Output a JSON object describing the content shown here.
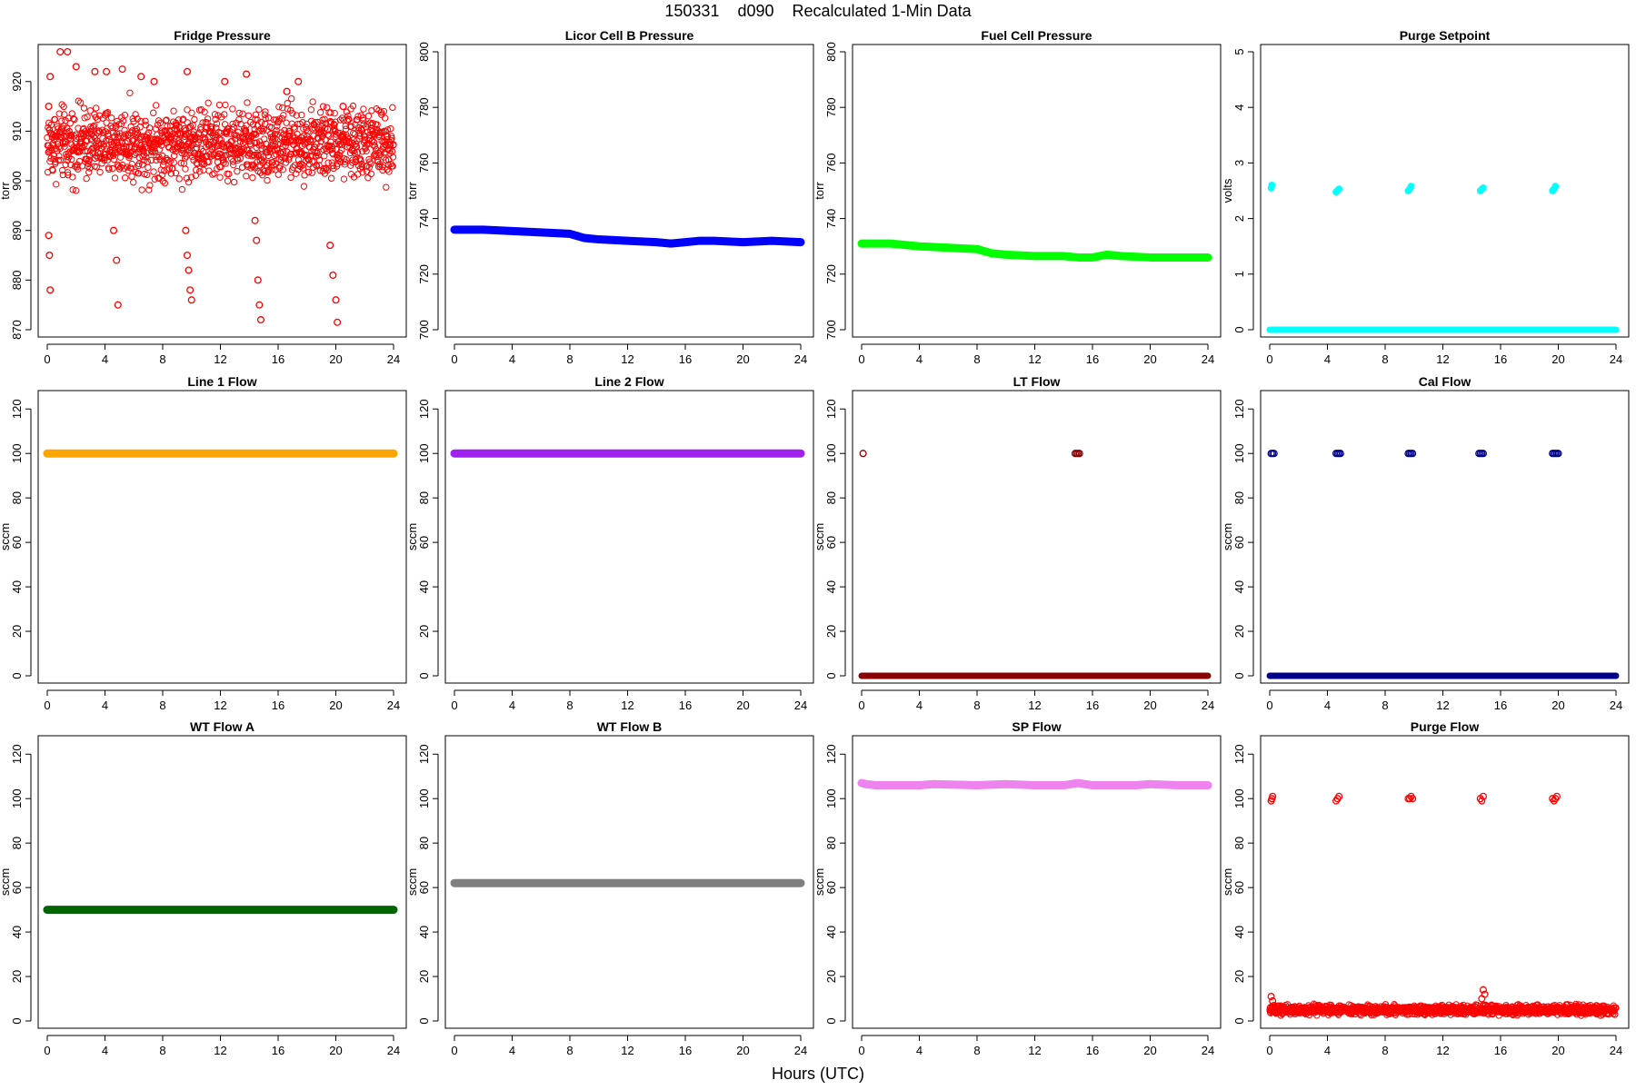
{
  "figure": {
    "title": "150331    d090    Recalculated 1-Min Data",
    "xlabel": "Hours (UTC)"
  },
  "chart_data": [
    {
      "type": "scatter",
      "title": "Fridge Pressure",
      "ylabel": "torr",
      "color": "#ff0000",
      "marker": "open-circle",
      "xlim": [
        0,
        24
      ],
      "xticks": [
        0,
        4,
        8,
        12,
        16,
        20,
        24
      ],
      "ylim": [
        870,
        926
      ],
      "yticks": [
        870,
        880,
        890,
        900,
        910,
        920
      ],
      "noise_band": {
        "x": [
          0,
          24
        ],
        "y_range": [
          897,
          918
        ]
      },
      "series": [
        {
          "x": [
            0.1,
            0.2,
            0.9,
            1.4,
            2.0,
            3.3,
            4.1,
            5.2,
            6.5,
            7.4,
            9.7,
            12.3,
            13.8,
            16.6,
            17.4,
            20.5
          ],
          "y": [
            915,
            921,
            926,
            926,
            923,
            922,
            922,
            922.5,
            921,
            920,
            922,
            920,
            921.5,
            918,
            920,
            915
          ]
        },
        {
          "x": [
            0.1,
            0.15,
            0.2,
            4.6,
            4.8,
            4.9,
            9.6,
            9.7,
            9.8,
            9.9,
            10.0,
            14.4,
            14.5,
            14.6,
            14.7,
            14.8,
            19.6,
            19.8,
            20.0,
            20.1
          ],
          "y": [
            889,
            885,
            878,
            890,
            884,
            875,
            890,
            885,
            882,
            878,
            876,
            892,
            888,
            880,
            875,
            872,
            887,
            881,
            876,
            871.5
          ]
        }
      ]
    },
    {
      "type": "line",
      "title": "Licor Cell B Pressure",
      "ylabel": "torr",
      "color": "#0000ff",
      "xlim": [
        0,
        24
      ],
      "xticks": [
        0,
        4,
        8,
        12,
        16,
        20,
        24
      ],
      "ylim": [
        700,
        800
      ],
      "yticks": [
        700,
        720,
        740,
        760,
        780,
        800
      ],
      "series": [
        {
          "x": [
            0,
            2,
            4,
            6,
            8,
            9,
            10,
            12,
            14,
            15,
            16,
            17,
            18,
            20,
            22,
            24
          ],
          "y": [
            736,
            736,
            735.5,
            735,
            734.5,
            733,
            732.5,
            732,
            731.5,
            731,
            731.5,
            732,
            732,
            731.5,
            732,
            731.5
          ]
        }
      ]
    },
    {
      "type": "line",
      "title": "Fuel Cell Pressure",
      "ylabel": "torr",
      "color": "#00ff00",
      "xlim": [
        0,
        24
      ],
      "xticks": [
        0,
        4,
        8,
        12,
        16,
        20,
        24
      ],
      "ylim": [
        700,
        800
      ],
      "yticks": [
        700,
        720,
        740,
        760,
        780,
        800
      ],
      "series": [
        {
          "x": [
            0,
            2,
            4,
            6,
            8,
            9,
            10,
            12,
            14,
            15,
            16,
            17,
            18,
            20,
            22,
            24
          ],
          "y": [
            731,
            731,
            730,
            729.5,
            729,
            727.5,
            727,
            726.5,
            726.5,
            726,
            726,
            727,
            726.5,
            726,
            726,
            726
          ]
        }
      ]
    },
    {
      "type": "scatter",
      "title": "Purge Setpoint",
      "ylabel": "volts",
      "color": "#00ffff",
      "marker": "filled-circle",
      "xlim": [
        0,
        24
      ],
      "xticks": [
        0,
        4,
        8,
        12,
        16,
        20,
        24
      ],
      "ylim": [
        0,
        5
      ],
      "yticks": [
        0,
        1,
        2,
        3,
        4,
        5
      ],
      "series": [
        {
          "x": [
            0,
            24
          ],
          "y": [
            0,
            0
          ]
        },
        {
          "x": [
            0.1,
            0.15,
            4.6,
            4.7,
            4.8,
            9.6,
            9.7,
            9.8,
            14.6,
            14.7,
            14.8,
            19.6,
            19.7,
            19.8
          ],
          "y": [
            2.55,
            2.6,
            2.48,
            2.5,
            2.53,
            2.5,
            2.53,
            2.58,
            2.5,
            2.53,
            2.55,
            2.5,
            2.53,
            2.58
          ]
        }
      ]
    },
    {
      "type": "line",
      "title": "Line 1 Flow",
      "ylabel": "sccm",
      "color": "#ffa500",
      "xlim": [
        0,
        24
      ],
      "xticks": [
        0,
        4,
        8,
        12,
        16,
        20,
        24
      ],
      "ylim": [
        0,
        125
      ],
      "yticks": [
        0,
        20,
        40,
        60,
        80,
        100,
        120
      ],
      "series": [
        {
          "x": [
            0,
            24
          ],
          "y": [
            100,
            100
          ]
        }
      ]
    },
    {
      "type": "line",
      "title": "Line 2 Flow",
      "ylabel": "sccm",
      "color": "#a020f0",
      "xlim": [
        0,
        24
      ],
      "xticks": [
        0,
        4,
        8,
        12,
        16,
        20,
        24
      ],
      "ylim": [
        0,
        125
      ],
      "yticks": [
        0,
        20,
        40,
        60,
        80,
        100,
        120
      ],
      "series": [
        {
          "x": [
            0,
            24
          ],
          "y": [
            100,
            100
          ]
        }
      ]
    },
    {
      "type": "scatter",
      "title": "LT Flow",
      "ylabel": "sccm",
      "color": "#8b0000",
      "marker": "open-circle",
      "xlim": [
        0,
        24
      ],
      "xticks": [
        0,
        4,
        8,
        12,
        16,
        20,
        24
      ],
      "ylim": [
        0,
        125
      ],
      "yticks": [
        0,
        20,
        40,
        60,
        80,
        100,
        120
      ],
      "series": [
        {
          "x": [
            0,
            24
          ],
          "y": [
            0,
            0
          ]
        },
        {
          "x": [
            0.1,
            14.8,
            14.9,
            15.0,
            15.1
          ],
          "y": [
            100,
            100,
            100,
            100,
            100
          ]
        }
      ]
    },
    {
      "type": "scatter",
      "title": "Cal Flow",
      "ylabel": "sccm",
      "color": "#00008b",
      "marker": "open-circle",
      "xlim": [
        0,
        24
      ],
      "xticks": [
        0,
        4,
        8,
        12,
        16,
        20,
        24
      ],
      "ylim": [
        0,
        125
      ],
      "yticks": [
        0,
        20,
        40,
        60,
        80,
        100,
        120
      ],
      "series": [
        {
          "x": [
            0,
            24
          ],
          "y": [
            0,
            0
          ]
        },
        {
          "x": [
            0.1,
            0.2,
            0.3,
            4.6,
            4.7,
            4.8,
            4.9,
            9.6,
            9.7,
            9.8,
            9.9,
            14.5,
            14.6,
            14.7,
            14.8,
            19.6,
            19.7,
            19.8,
            19.9,
            20.0
          ],
          "y": [
            100,
            100,
            100,
            100,
            100,
            100,
            100,
            100,
            100,
            100,
            100,
            100,
            100,
            100,
            100,
            100,
            100,
            100,
            100,
            100
          ]
        }
      ]
    },
    {
      "type": "line",
      "title": "WT Flow A",
      "ylabel": "sccm",
      "color": "#006400",
      "xlim": [
        0,
        24
      ],
      "xticks": [
        0,
        4,
        8,
        12,
        16,
        20,
        24
      ],
      "ylim": [
        0,
        125
      ],
      "yticks": [
        0,
        20,
        40,
        60,
        80,
        100,
        120
      ],
      "series": [
        {
          "x": [
            0,
            24
          ],
          "y": [
            50,
            50
          ]
        }
      ]
    },
    {
      "type": "line",
      "title": "WT Flow B",
      "ylabel": "sccm",
      "color": "#7f7f7f",
      "xlim": [
        0,
        24
      ],
      "xticks": [
        0,
        4,
        8,
        12,
        16,
        20,
        24
      ],
      "ylim": [
        0,
        125
      ],
      "yticks": [
        0,
        20,
        40,
        60,
        80,
        100,
        120
      ],
      "series": [
        {
          "x": [
            0,
            24
          ],
          "y": [
            62,
            62
          ]
        }
      ]
    },
    {
      "type": "line",
      "title": "SP Flow",
      "ylabel": "sccm",
      "color": "#ee82ee",
      "xlim": [
        0,
        24
      ],
      "xticks": [
        0,
        4,
        8,
        12,
        16,
        20,
        24
      ],
      "ylim": [
        0,
        125
      ],
      "yticks": [
        0,
        20,
        40,
        60,
        80,
        100,
        120
      ],
      "series": [
        {
          "x": [
            0,
            0.3,
            1,
            4,
            5,
            8,
            10,
            12,
            14,
            15,
            16,
            19,
            20,
            22,
            24
          ],
          "y": [
            107,
            106.5,
            106,
            106,
            106.5,
            106,
            106.5,
            106,
            106,
            107,
            106,
            106,
            106.5,
            106,
            106
          ]
        }
      ]
    },
    {
      "type": "scatter",
      "title": "Purge Flow",
      "ylabel": "sccm",
      "color": "#ff0000",
      "marker": "open-circle",
      "xlim": [
        0,
        24
      ],
      "xticks": [
        0,
        4,
        8,
        12,
        16,
        20,
        24
      ],
      "ylim": [
        0,
        125
      ],
      "yticks": [
        0,
        20,
        40,
        60,
        80,
        100,
        120
      ],
      "noise_band": {
        "x": [
          0,
          24
        ],
        "y_range": [
          2,
          8
        ]
      },
      "series": [
        {
          "x": [
            0.1,
            0.15,
            0.2,
            4.6,
            4.7,
            4.8,
            9.6,
            9.7,
            9.8,
            9.9,
            14.6,
            14.7,
            14.8,
            19.6,
            19.7,
            19.8,
            19.9
          ],
          "y": [
            99,
            100,
            101,
            99,
            100,
            101,
            100,
            100,
            101,
            100,
            100,
            99,
            101,
            100,
            99,
            100,
            101
          ]
        },
        {
          "x": [
            0.1,
            0.2,
            14.7,
            14.8,
            14.9
          ],
          "y": [
            11,
            9,
            10,
            14,
            12
          ]
        }
      ]
    }
  ]
}
